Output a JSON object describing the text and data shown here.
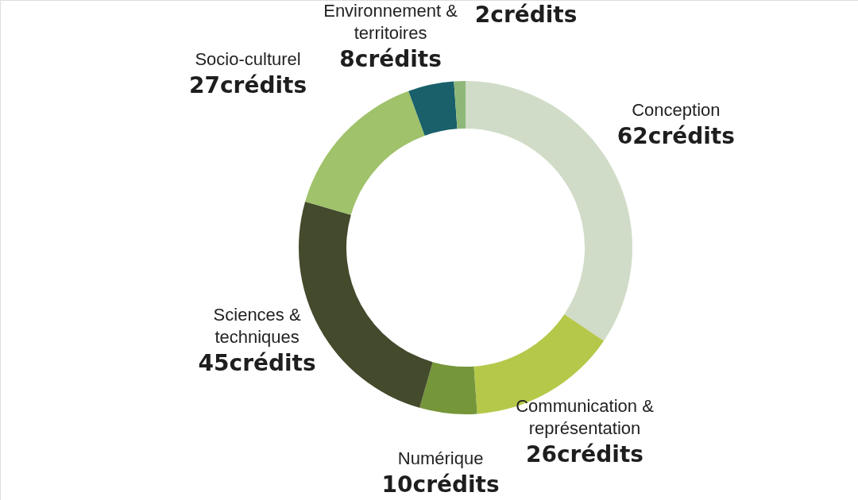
{
  "chart_data": {
    "type": "donut",
    "categories": [
      "Conception",
      "Communication & représentation",
      "Numérique",
      "Sciences & techniques",
      "Socio-culturel",
      "Environnement & territoires",
      null
    ],
    "values": [
      62,
      26,
      10,
      45,
      27,
      8,
      2
    ],
    "colors": [
      "#d0dcc7",
      "#b5c84a",
      "#76963a",
      "#444a2c",
      "#9fc26a",
      "#19606a",
      "#8fb878"
    ],
    "value_labels": [
      "62crédits",
      "26crédits",
      "10crédits",
      "45crédits",
      "27crédits",
      "8crédits",
      "2crédits"
    ]
  }
}
